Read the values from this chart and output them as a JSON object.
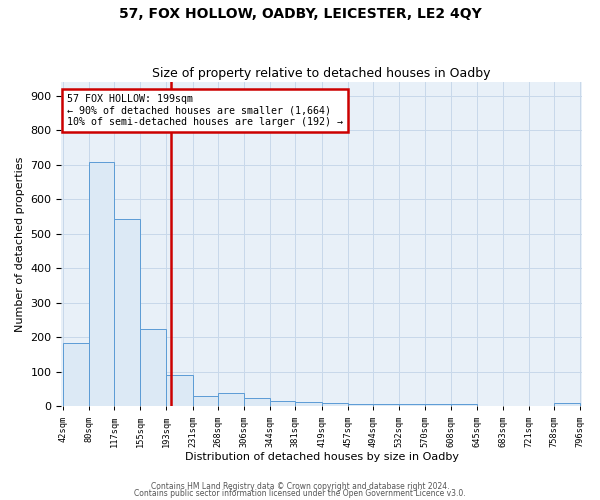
{
  "title": "57, FOX HOLLOW, OADBY, LEICESTER, LE2 4QY",
  "subtitle": "Size of property relative to detached houses in Oadby",
  "xlabel": "Distribution of detached houses by size in Oadby",
  "ylabel": "Number of detached properties",
  "bin_edges": [
    42,
    80,
    117,
    155,
    193,
    231,
    268,
    306,
    344,
    381,
    419,
    457,
    494,
    532,
    570,
    608,
    645,
    683,
    721,
    758,
    796
  ],
  "bin_values": [
    185,
    707,
    543,
    224,
    90,
    30,
    40,
    25,
    15,
    12,
    10,
    8,
    8,
    8,
    8,
    7,
    2,
    2,
    2,
    10
  ],
  "bar_color": "#dce9f5",
  "bar_edge_color": "#5b9bd5",
  "grid_color": "#c8d8ea",
  "bg_color": "#e8f0f8",
  "property_line_x": 199,
  "property_line_color": "#cc0000",
  "annotation_text": "57 FOX HOLLOW: 199sqm\n← 90% of detached houses are smaller (1,664)\n10% of semi-detached houses are larger (192) →",
  "annotation_box_color": "#cc0000",
  "ylim": [
    0,
    940
  ],
  "yticks": [
    0,
    100,
    200,
    300,
    400,
    500,
    600,
    700,
    800,
    900
  ],
  "footnote1": "Contains HM Land Registry data © Crown copyright and database right 2024.",
  "footnote2": "Contains public sector information licensed under the Open Government Licence v3.0."
}
